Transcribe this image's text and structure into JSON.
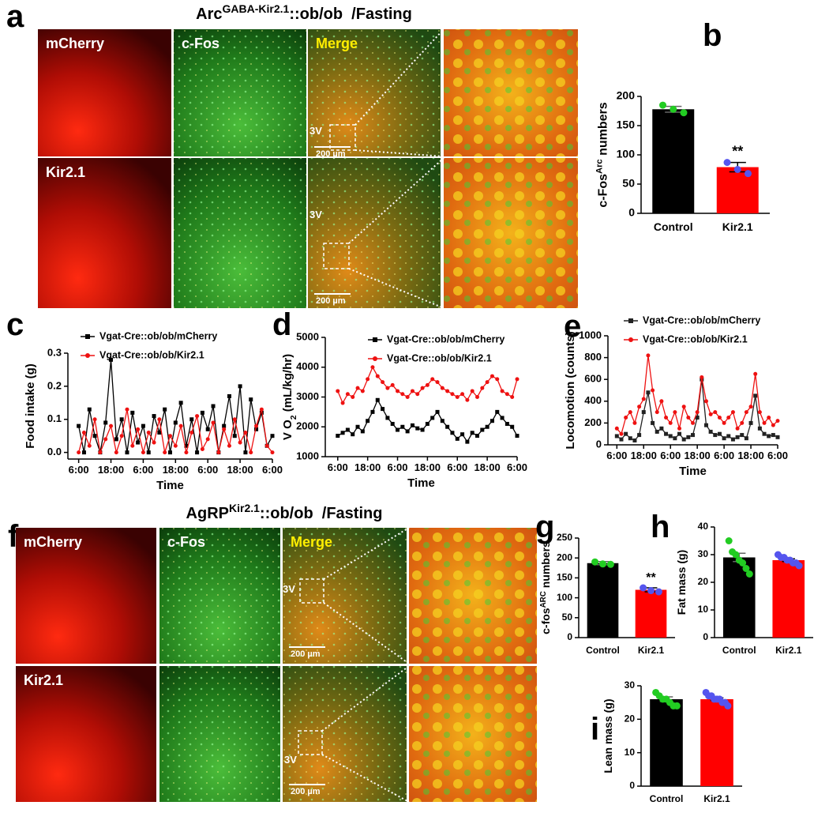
{
  "figures": [
    {
      "label": "a",
      "title": [
        "Arc",
        {
          "sup": "GABA-Kir2.1"
        },
        "::ob/ob  /Fasting"
      ],
      "top_labels": [
        "mCherry",
        "c-Fos",
        "Merge"
      ],
      "bottom_labels": [
        "Kir2.1"
      ],
      "landmarks": [
        "3V",
        "3V"
      ],
      "scale_bars": [
        "200 µm",
        "200 µm"
      ]
    },
    {
      "label": "f",
      "title": [
        "AgRP",
        {
          "sup": "Kir2.1"
        },
        "::ob/ob  /Fasting"
      ],
      "top_labels": [
        "mCherry",
        "c-Fos",
        "Merge"
      ],
      "bottom_labels": [
        "Kir2.1"
      ],
      "landmarks": [
        "3V",
        "3V"
      ],
      "scale_bars": [
        "200 µm",
        "200 µm"
      ]
    }
  ],
  "chart_data": [
    {
      "type": "bar",
      "label": "b",
      "ylabel": [
        "c-Fos",
        {
          "sup": "Arc"
        },
        " numbers"
      ],
      "categories": [
        "Control",
        "Kir2.1"
      ],
      "values": [
        178,
        79
      ],
      "errors": [
        5,
        8
      ],
      "colors": [
        "#000000",
        "#ff0000"
      ],
      "points": [
        [
          185,
          178,
          172
        ],
        [
          87,
          75,
          68
        ]
      ],
      "point_colors": [
        "#22cc22",
        "#5555ee"
      ],
      "annotation": "**",
      "ylim": [
        0,
        200
      ],
      "yticks": [
        0,
        50,
        100,
        150,
        200
      ]
    },
    {
      "type": "line",
      "label": "c",
      "xlabel": "Time",
      "ylabel": "Food intake (g)",
      "legend": "upper left",
      "x": [
        0,
        2,
        4,
        6,
        8,
        10,
        12,
        14,
        16,
        18,
        20,
        22,
        24,
        26,
        28,
        30,
        32,
        34,
        36,
        38,
        40,
        42,
        44,
        46,
        48,
        50,
        52,
        54,
        56,
        58,
        60,
        62,
        64,
        66,
        68,
        70,
        72
      ],
      "xlim": [
        -4,
        72
      ],
      "xticks": [
        {
          "value": 0,
          "label": "6:00"
        },
        {
          "value": 12,
          "label": "18:00"
        },
        {
          "value": 24,
          "label": "6:00"
        },
        {
          "value": 36,
          "label": "18:00"
        },
        {
          "value": 48,
          "label": "6:00"
        },
        {
          "value": 60,
          "label": "18:00"
        },
        {
          "value": 72,
          "label": "6:00"
        }
      ],
      "ylim": [
        -0.02,
        0.3
      ],
      "yticks": [
        {
          "value": 0,
          "label": "0.0"
        },
        0.1,
        0.2,
        0.3
      ],
      "series": [
        {
          "name": "Vgat-Cre::ob/ob/mCherry",
          "color": "#000000",
          "marker": "square",
          "values": [
            0.08,
            0.0,
            0.13,
            0.05,
            0.0,
            0.09,
            0.28,
            0.04,
            0.1,
            0.0,
            0.12,
            0.03,
            0.08,
            0.0,
            0.11,
            0.06,
            0.13,
            0.0,
            0.09,
            0.15,
            0.02,
            0.1,
            0.0,
            0.12,
            0.07,
            0.14,
            0.0,
            0.08,
            0.17,
            0.05,
            0.2,
            0.0,
            0.16,
            0.07,
            0.12,
            0.02,
            0.05
          ]
        },
        {
          "name": "Vgat-Cre::ob/ob/Kir2.1",
          "color": "#ee1111",
          "marker": "circle",
          "values": [
            0.0,
            0.06,
            0.02,
            0.1,
            0.0,
            0.04,
            0.08,
            0.0,
            0.05,
            0.13,
            0.02,
            0.07,
            0.0,
            0.06,
            0.03,
            0.1,
            0.0,
            0.05,
            0.02,
            0.08,
            0.0,
            0.06,
            0.11,
            0.01,
            0.04,
            0.09,
            0.0,
            0.07,
            0.02,
            0.1,
            0.03,
            0.06,
            0.0,
            0.08,
            0.13,
            0.02,
            0.0
          ]
        }
      ]
    },
    {
      "type": "line",
      "label": "d",
      "xlabel": "Time",
      "ylabel": [
        "V O",
        {
          "sub": "2"
        },
        " (mL/kg/hr)"
      ],
      "legend": "upper left",
      "x": [
        0,
        2,
        4,
        6,
        8,
        10,
        12,
        14,
        16,
        18,
        20,
        22,
        24,
        26,
        28,
        30,
        32,
        34,
        36,
        38,
        40,
        42,
        44,
        46,
        48,
        50,
        52,
        54,
        56,
        58,
        60,
        62,
        64,
        66,
        68,
        70,
        72
      ],
      "xlim": [
        -5,
        72
      ],
      "xticks": [
        {
          "value": 0,
          "label": "6:00"
        },
        {
          "value": 12,
          "label": "18:00"
        },
        {
          "value": 24,
          "label": "6:00"
        },
        {
          "value": 36,
          "label": "18:00"
        },
        {
          "value": 48,
          "label": "6:00"
        },
        {
          "value": 60,
          "label": "18:00"
        },
        {
          "value": 72,
          "label": "6:00"
        }
      ],
      "ylim": [
        1000,
        5000
      ],
      "yticks": [
        1000,
        2000,
        3000,
        4000,
        5000
      ],
      "series": [
        {
          "name": "Vgat-Cre::ob/ob/mCherry",
          "color": "#000000",
          "marker": "square",
          "values": [
            1700,
            1800,
            1900,
            1750,
            2000,
            1850,
            2200,
            2500,
            2900,
            2600,
            2300,
            2100,
            1900,
            2000,
            1850,
            2050,
            1950,
            1900,
            2100,
            2300,
            2500,
            2200,
            2000,
            1800,
            1600,
            1750,
            1500,
            1800,
            1700,
            1900,
            2000,
            2200,
            2500,
            2300,
            2100,
            2000,
            1700
          ]
        },
        {
          "name": "Vgat-Cre::ob/ob/Kir2.1",
          "color": "#ee1111",
          "marker": "circle",
          "values": [
            3200,
            2800,
            3100,
            3000,
            3300,
            3200,
            3600,
            4000,
            3700,
            3500,
            3300,
            3400,
            3200,
            3100,
            3000,
            3200,
            3100,
            3300,
            3400,
            3600,
            3500,
            3300,
            3200,
            3100,
            3000,
            3100,
            2900,
            3200,
            3000,
            3300,
            3500,
            3700,
            3600,
            3200,
            3100,
            3000,
            3600
          ]
        }
      ]
    },
    {
      "type": "line",
      "label": "e",
      "xlabel": "Time",
      "ylabel": "Locomotion (counts)",
      "legend": "upper left",
      "x": [
        0,
        2,
        4,
        6,
        8,
        10,
        12,
        14,
        16,
        18,
        20,
        22,
        24,
        26,
        28,
        30,
        32,
        34,
        36,
        38,
        40,
        42,
        44,
        46,
        48,
        50,
        52,
        54,
        56,
        58,
        60,
        62,
        64,
        66,
        68,
        70,
        72
      ],
      "xlim": [
        -4,
        72
      ],
      "xticks": [
        {
          "value": 0,
          "label": "6:00"
        },
        {
          "value": 12,
          "label": "18:00"
        },
        {
          "value": 24,
          "label": "6:00"
        },
        {
          "value": 36,
          "label": "18:00"
        },
        {
          "value": 48,
          "label": "6:00"
        },
        {
          "value": 60,
          "label": "18:00"
        },
        {
          "value": 72,
          "label": "6:00"
        }
      ],
      "ylim": [
        0,
        1000
      ],
      "yticks": [
        0,
        200,
        400,
        600,
        800,
        1000
      ],
      "series": [
        {
          "name": "Vgat-Cre::ob/ob/mCherry",
          "color": "#222222",
          "marker": "square",
          "values": [
            80,
            50,
            100,
            60,
            40,
            90,
            300,
            480,
            200,
            120,
            150,
            100,
            80,
            60,
            100,
            50,
            70,
            90,
            250,
            600,
            180,
            120,
            90,
            100,
            60,
            80,
            50,
            70,
            90,
            60,
            200,
            450,
            150,
            100,
            80,
            90,
            70
          ]
        },
        {
          "name": "Vgat-Cre::ob/ob/Kir2.1",
          "color": "#ee1111",
          "marker": "circle",
          "values": [
            150,
            100,
            250,
            300,
            200,
            350,
            420,
            820,
            500,
            300,
            400,
            250,
            200,
            300,
            150,
            350,
            250,
            200,
            300,
            620,
            400,
            280,
            300,
            250,
            200,
            250,
            300,
            150,
            200,
            300,
            350,
            650,
            300,
            200,
            250,
            180,
            220
          ]
        }
      ]
    },
    {
      "type": "bar",
      "label": "g",
      "ylabel": [
        "c-fos",
        {
          "sup": "ARC"
        },
        " numbers"
      ],
      "categories": [
        "Control",
        "Kir2.1"
      ],
      "values": [
        187,
        120
      ],
      "errors": [
        4,
        5
      ],
      "colors": [
        "#000000",
        "#ff0000"
      ],
      "points": [
        [
          190,
          185,
          184
        ],
        [
          125,
          118,
          115
        ]
      ],
      "point_colors": [
        "#22cc22",
        "#5555ee"
      ],
      "annotation": "**",
      "ylim": [
        0,
        250
      ],
      "yticks": [
        0,
        50,
        100,
        150,
        200,
        250
      ]
    },
    {
      "type": "bar",
      "label": "h",
      "ylabel": "Fat mass (g)",
      "categories": [
        "Control",
        "Kir2.1"
      ],
      "values": [
        29,
        28
      ],
      "errors": [
        1.5,
        0.5
      ],
      "colors": [
        "#000000",
        "#ff0000"
      ],
      "points": [
        [
          35,
          31,
          30,
          28,
          27,
          25,
          23
        ],
        [
          30,
          29,
          29,
          28,
          28,
          27,
          27,
          26
        ]
      ],
      "point_colors": [
        "#22cc22",
        "#5555ee"
      ],
      "ylim": [
        0,
        40
      ],
      "yticks": [
        0,
        10,
        20,
        30,
        40
      ]
    },
    {
      "type": "bar",
      "label": "i",
      "ylabel": "Lean mass (g)",
      "categories": [
        "Control",
        "Kir2.1"
      ],
      "values": [
        26,
        26
      ],
      "errors": [
        0.7,
        0.4
      ],
      "colors": [
        "#000000",
        "#ff0000"
      ],
      "points": [
        [
          28,
          27,
          26,
          26,
          25,
          24,
          24
        ],
        [
          28,
          27,
          27,
          26,
          26,
          26,
          25,
          25,
          24
        ]
      ],
      "point_colors": [
        "#22cc22",
        "#5555ee"
      ],
      "ylim": [
        0,
        30
      ],
      "yticks": [
        0,
        10,
        20,
        30
      ]
    }
  ]
}
